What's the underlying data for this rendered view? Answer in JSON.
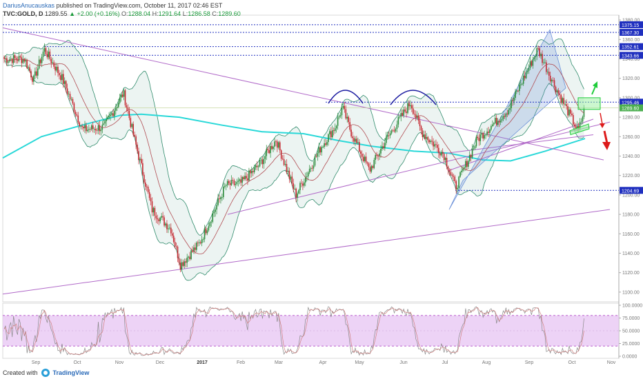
{
  "header": {
    "author": "DariusAnucauskas",
    "published": "published on TradingView.com, October 11, 2017 02:46 EST",
    "symbol": "TVC:GOLD, D",
    "last": "1289.55",
    "change": "▲ +2.00 (+0.16%)",
    "open_label": "O:",
    "open": "1288.04",
    "high_label": "H:",
    "high": "1291.64",
    "low_label": "L:",
    "low": "1286.58",
    "close_label": "C:",
    "close": "1289.60"
  },
  "footer": {
    "created_with": "Created with",
    "brand": "TradingView"
  },
  "colors": {
    "up": "#2a8a3a",
    "down": "#c4262e",
    "dotted": "#1f2fbf",
    "purple": "#b068c8",
    "ma200": "#28d8d8",
    "ma20": "#b04a50",
    "bb": "#2e8a6a",
    "green": "#1fcc3a",
    "red": "#dd1a1a",
    "arc": "#1a1aa0"
  },
  "chart_data": [
    {
      "type": "candlestick",
      "title": "",
      "ylim": [
        1090,
        1385
      ],
      "y_ticks": [
        1100,
        1120,
        1140,
        1160,
        1180,
        1200,
        1220,
        1240,
        1260,
        1280,
        1300,
        1320,
        1340,
        1360,
        1380
      ],
      "x_labels": [
        "Sep",
        "Oct",
        "Nov",
        "Dec",
        "2017",
        "Feb",
        "Mar",
        "Apr",
        "May",
        "Jun",
        "Jul",
        "Aug",
        "Sep",
        "Oct",
        "Nov"
      ],
      "horizontal_levels": [
        {
          "label": "1375.15",
          "value": 1375.15
        },
        {
          "label": "1367.30",
          "value": 1367.3
        },
        {
          "label": "1352.61",
          "value": 1352.61
        },
        {
          "label": "1343.66",
          "value": 1343.66
        },
        {
          "label": "1295.46",
          "value": 1295.46
        },
        {
          "label": "1289.60",
          "value": 1289.6
        },
        {
          "label": "1204.69",
          "value": 1204.69
        }
      ],
      "close_path": [
        [
          "Aug 22",
          1340
        ],
        [
          "Aug 30",
          1318
        ],
        [
          "Sep 7",
          1350
        ],
        [
          "Sep 20",
          1320
        ],
        [
          "Oct 5",
          1267
        ],
        [
          "Oct 21",
          1270
        ],
        [
          "Nov 4",
          1305
        ],
        [
          "Nov 12",
          1258
        ],
        [
          "Nov 25",
          1185
        ],
        [
          "Dec 9",
          1165
        ],
        [
          "Dec 16",
          1128
        ],
        [
          "Dec 30",
          1150
        ],
        [
          "Jan 20",
          1210
        ],
        [
          "Feb 1",
          1212
        ],
        [
          "Feb 14",
          1230
        ],
        [
          "Feb 27",
          1257
        ],
        [
          "Mar 13",
          1200
        ],
        [
          "Mar 31",
          1250
        ],
        [
          "Apr 11",
          1270
        ],
        [
          "Apr 17",
          1290
        ],
        [
          "Apr 24",
          1265
        ],
        [
          "May 8",
          1225
        ],
        [
          "May 19",
          1255
        ],
        [
          "Jun 6",
          1295
        ],
        [
          "Jun 14",
          1265
        ],
        [
          "Jun 30",
          1242
        ],
        [
          "Jul 9",
          1208
        ],
        [
          "Jul 25",
          1257
        ],
        [
          "Aug 17",
          1288
        ],
        [
          "Sep 7",
          1350
        ],
        [
          "Sep 18",
          1315
        ],
        [
          "Oct 6",
          1265
        ],
        [
          "Oct 11",
          1289
        ]
      ],
      "annotations": [
        "double top arcs",
        "rising channel",
        "green arrow up",
        "red arrows down"
      ]
    },
    {
      "type": "line",
      "title": "",
      "ylim": [
        0,
        100
      ],
      "y_ticks": [
        {
          "label": "100.0000",
          "value": 100
        },
        {
          "label": "75.0000",
          "value": 75
        },
        {
          "label": "50.0000",
          "value": 50
        },
        {
          "label": "25.0000",
          "value": 25
        },
        {
          "label": "0.0000",
          "value": 0
        }
      ],
      "band": [
        20,
        80
      ]
    }
  ]
}
